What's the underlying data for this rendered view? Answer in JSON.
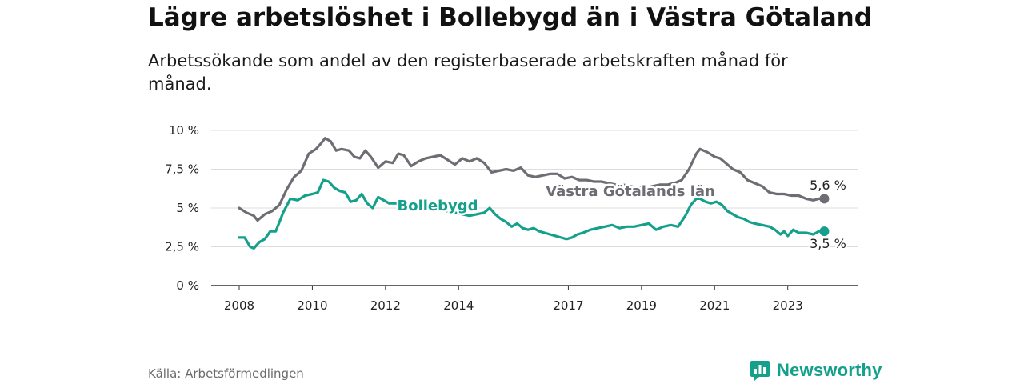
{
  "title": "Lägre arbetslöshet i Bollebygd än i Västra Götaland",
  "subtitle": "Arbetssökande som andel av den registerbaserade arbetskraften månad för månad.",
  "source": "Källa: Arbetsförmedlingen",
  "brand": "Newsworthy",
  "colors": {
    "county": "#6d6d73",
    "municipality": "#14a08b",
    "grid": "#dddddd",
    "axis": "#333333",
    "brand": "#14a08b"
  },
  "chart_data": {
    "type": "line",
    "y_unit": "%",
    "ylim": [
      0,
      10
    ],
    "y_ticks": [
      0,
      2.5,
      5,
      7.5,
      10
    ],
    "y_tick_labels": [
      "0 %",
      "2,5 %",
      "5 %",
      "7,5 %",
      "10 %"
    ],
    "xlim": [
      2008.0,
      2024.1
    ],
    "x_ticks": [
      2008,
      2010,
      2012,
      2014,
      2017,
      2019,
      2021,
      2023
    ],
    "x_tick_labels": [
      "2008",
      "2010",
      "2012",
      "2014",
      "2017",
      "2019",
      "2021",
      "2023"
    ],
    "grid": true,
    "series": [
      {
        "name": "Västra Götalands län",
        "key": "county",
        "end_label": "5,6 %",
        "end_value": 5.6,
        "points": [
          [
            2008.0,
            5.0
          ],
          [
            2008.2,
            4.7
          ],
          [
            2008.4,
            4.5
          ],
          [
            2008.5,
            4.2
          ],
          [
            2008.7,
            4.6
          ],
          [
            2008.9,
            4.8
          ],
          [
            2009.1,
            5.2
          ],
          [
            2009.3,
            6.2
          ],
          [
            2009.5,
            7.0
          ],
          [
            2009.7,
            7.4
          ],
          [
            2009.9,
            8.5
          ],
          [
            2010.1,
            8.8
          ],
          [
            2010.25,
            9.2
          ],
          [
            2010.35,
            9.5
          ],
          [
            2010.5,
            9.3
          ],
          [
            2010.65,
            8.7
          ],
          [
            2010.8,
            8.8
          ],
          [
            2011.0,
            8.7
          ],
          [
            2011.15,
            8.3
          ],
          [
            2011.3,
            8.2
          ],
          [
            2011.45,
            8.7
          ],
          [
            2011.6,
            8.3
          ],
          [
            2011.8,
            7.6
          ],
          [
            2012.0,
            8.0
          ],
          [
            2012.2,
            7.9
          ],
          [
            2012.35,
            8.5
          ],
          [
            2012.5,
            8.4
          ],
          [
            2012.7,
            7.7
          ],
          [
            2012.9,
            8.0
          ],
          [
            2013.1,
            8.2
          ],
          [
            2013.3,
            8.3
          ],
          [
            2013.5,
            8.4
          ],
          [
            2013.7,
            8.1
          ],
          [
            2013.9,
            7.8
          ],
          [
            2014.1,
            8.2
          ],
          [
            2014.3,
            8.0
          ],
          [
            2014.5,
            8.2
          ],
          [
            2014.7,
            7.9
          ],
          [
            2014.9,
            7.3
          ],
          [
            2015.1,
            7.4
          ],
          [
            2015.3,
            7.5
          ],
          [
            2015.5,
            7.4
          ],
          [
            2015.7,
            7.6
          ],
          [
            2015.9,
            7.1
          ],
          [
            2016.1,
            7.0
          ],
          [
            2016.3,
            7.1
          ],
          [
            2016.5,
            7.2
          ],
          [
            2016.7,
            7.2
          ],
          [
            2016.9,
            6.9
          ],
          [
            2017.1,
            7.0
          ],
          [
            2017.3,
            6.8
          ],
          [
            2017.5,
            6.8
          ],
          [
            2017.7,
            6.7
          ],
          [
            2017.9,
            6.7
          ],
          [
            2018.1,
            6.6
          ],
          [
            2018.3,
            6.5
          ],
          [
            2018.5,
            6.5
          ],
          [
            2018.7,
            6.4
          ],
          [
            2018.9,
            6.3
          ],
          [
            2019.1,
            6.3
          ],
          [
            2019.3,
            6.4
          ],
          [
            2019.5,
            6.5
          ],
          [
            2019.7,
            6.5
          ],
          [
            2019.9,
            6.6
          ],
          [
            2020.1,
            6.8
          ],
          [
            2020.3,
            7.5
          ],
          [
            2020.5,
            8.5
          ],
          [
            2020.6,
            8.8
          ],
          [
            2020.8,
            8.6
          ],
          [
            2021.0,
            8.3
          ],
          [
            2021.15,
            8.2
          ],
          [
            2021.3,
            7.9
          ],
          [
            2021.5,
            7.5
          ],
          [
            2021.7,
            7.3
          ],
          [
            2021.9,
            6.8
          ],
          [
            2022.1,
            6.6
          ],
          [
            2022.3,
            6.4
          ],
          [
            2022.5,
            6.0
          ],
          [
            2022.7,
            5.9
          ],
          [
            2022.9,
            5.9
          ],
          [
            2023.1,
            5.8
          ],
          [
            2023.3,
            5.8
          ],
          [
            2023.5,
            5.6
          ],
          [
            2023.7,
            5.5
          ],
          [
            2023.85,
            5.6
          ],
          [
            2024.0,
            5.6
          ]
        ]
      },
      {
        "name": "Bollebygd",
        "key": "municipality",
        "end_label": "3,5 %",
        "end_value": 3.5,
        "points": [
          [
            2008.0,
            3.1
          ],
          [
            2008.15,
            3.1
          ],
          [
            2008.3,
            2.5
          ],
          [
            2008.4,
            2.4
          ],
          [
            2008.55,
            2.8
          ],
          [
            2008.7,
            3.0
          ],
          [
            2008.85,
            3.5
          ],
          [
            2009.0,
            3.5
          ],
          [
            2009.2,
            4.7
          ],
          [
            2009.4,
            5.6
          ],
          [
            2009.6,
            5.5
          ],
          [
            2009.8,
            5.8
          ],
          [
            2010.0,
            5.9
          ],
          [
            2010.15,
            6.0
          ],
          [
            2010.3,
            6.8
          ],
          [
            2010.45,
            6.7
          ],
          [
            2010.6,
            6.3
          ],
          [
            2010.75,
            6.1
          ],
          [
            2010.9,
            6.0
          ],
          [
            2011.05,
            5.4
          ],
          [
            2011.2,
            5.5
          ],
          [
            2011.35,
            5.9
          ],
          [
            2011.5,
            5.3
          ],
          [
            2011.65,
            5.0
          ],
          [
            2011.8,
            5.7
          ],
          [
            2011.95,
            5.5
          ],
          [
            2012.1,
            5.3
          ],
          [
            2012.3,
            5.3
          ],
          [
            2012.5,
            4.9
          ],
          [
            2012.7,
            5.1
          ],
          [
            2012.9,
            5.0
          ],
          [
            2013.1,
            5.0
          ],
          [
            2013.3,
            4.9
          ],
          [
            2013.5,
            4.8
          ],
          [
            2013.7,
            4.8
          ],
          [
            2013.9,
            4.7
          ],
          [
            2014.1,
            4.6
          ],
          [
            2014.3,
            4.5
          ],
          [
            2014.5,
            4.6
          ],
          [
            2014.7,
            4.7
          ],
          [
            2014.85,
            5.0
          ],
          [
            2015.0,
            4.6
          ],
          [
            2015.15,
            4.3
          ],
          [
            2015.3,
            4.1
          ],
          [
            2015.45,
            3.8
          ],
          [
            2015.6,
            4.0
          ],
          [
            2015.75,
            3.7
          ],
          [
            2015.9,
            3.6
          ],
          [
            2016.05,
            3.7
          ],
          [
            2016.2,
            3.5
          ],
          [
            2016.35,
            3.4
          ],
          [
            2016.5,
            3.3
          ],
          [
            2016.65,
            3.2
          ],
          [
            2016.8,
            3.1
          ],
          [
            2016.95,
            3.0
          ],
          [
            2017.1,
            3.1
          ],
          [
            2017.25,
            3.3
          ],
          [
            2017.4,
            3.4
          ],
          [
            2017.6,
            3.6
          ],
          [
            2017.8,
            3.7
          ],
          [
            2018.0,
            3.8
          ],
          [
            2018.2,
            3.9
          ],
          [
            2018.4,
            3.7
          ],
          [
            2018.6,
            3.8
          ],
          [
            2018.8,
            3.8
          ],
          [
            2019.0,
            3.9
          ],
          [
            2019.2,
            4.0
          ],
          [
            2019.4,
            3.6
          ],
          [
            2019.6,
            3.8
          ],
          [
            2019.8,
            3.9
          ],
          [
            2020.0,
            3.8
          ],
          [
            2020.2,
            4.5
          ],
          [
            2020.35,
            5.2
          ],
          [
            2020.5,
            5.6
          ],
          [
            2020.6,
            5.6
          ],
          [
            2020.75,
            5.4
          ],
          [
            2020.9,
            5.3
          ],
          [
            2021.05,
            5.4
          ],
          [
            2021.2,
            5.2
          ],
          [
            2021.35,
            4.8
          ],
          [
            2021.5,
            4.6
          ],
          [
            2021.65,
            4.4
          ],
          [
            2021.8,
            4.3
          ],
          [
            2021.95,
            4.1
          ],
          [
            2022.1,
            4.0
          ],
          [
            2022.3,
            3.9
          ],
          [
            2022.5,
            3.8
          ],
          [
            2022.65,
            3.6
          ],
          [
            2022.8,
            3.3
          ],
          [
            2022.9,
            3.5
          ],
          [
            2023.0,
            3.2
          ],
          [
            2023.15,
            3.6
          ],
          [
            2023.3,
            3.4
          ],
          [
            2023.5,
            3.4
          ],
          [
            2023.7,
            3.3
          ],
          [
            2023.85,
            3.5
          ],
          [
            2024.0,
            3.5
          ]
        ]
      }
    ]
  }
}
